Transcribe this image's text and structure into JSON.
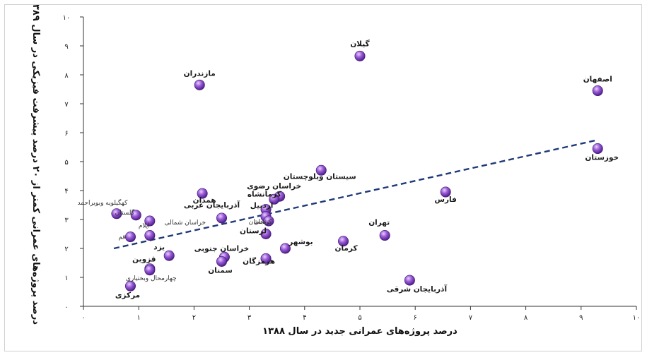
{
  "chart_data": {
    "type": "scatter",
    "title": "",
    "xlabel": "درصد پروژه‌های عمرانی جدید در سال ۱۳۸۸",
    "ylabel": "درصد پروژه‌های عمرانی کمتر از ۲۰ درصد پیشرفت فیزیکی در سال ۱۳۸۹",
    "xlim": [
      0,
      10
    ],
    "ylim": [
      0,
      10
    ],
    "x_ticks": [
      {
        "value": 0,
        "label": "۰"
      },
      {
        "value": 1,
        "label": "۱"
      },
      {
        "value": 2,
        "label": "۲"
      },
      {
        "value": 3,
        "label": "۳"
      },
      {
        "value": 4,
        "label": "۴"
      },
      {
        "value": 5,
        "label": "۵"
      },
      {
        "value": 6,
        "label": "۶"
      },
      {
        "value": 7,
        "label": "۷"
      },
      {
        "value": 8,
        "label": "۸"
      },
      {
        "value": 9,
        "label": "۹"
      },
      {
        "value": 10,
        "label": "۱۰"
      }
    ],
    "y_ticks": [
      {
        "value": 0,
        "label": "۰"
      },
      {
        "value": 1,
        "label": "۱"
      },
      {
        "value": 2,
        "label": "۲"
      },
      {
        "value": 3,
        "label": "۳"
      },
      {
        "value": 4,
        "label": "۴"
      },
      {
        "value": 5,
        "label": "۵"
      },
      {
        "value": 6,
        "label": "۶"
      },
      {
        "value": 7,
        "label": "۷"
      },
      {
        "value": 8,
        "label": "۸"
      },
      {
        "value": 9,
        "label": "۹"
      },
      {
        "value": 10,
        "label": "۱۰"
      }
    ],
    "grid": false,
    "legend": "none",
    "marker_color": "#7f3fbf",
    "trendline": {
      "style": "dashed",
      "color": "#1f3a78",
      "from": [
        0.55,
        2.0
      ],
      "to": [
        9.3,
        5.75
      ]
    },
    "points": [
      {
        "name": "گیلان",
        "x": 5.0,
        "y": 8.65
      },
      {
        "name": "اصفهان",
        "x": 9.3,
        "y": 7.45
      },
      {
        "name": "مازندران",
        "x": 2.1,
        "y": 7.65
      },
      {
        "name": "خوزستان",
        "x": 9.3,
        "y": 5.45
      },
      {
        "name": "سیستان وبلوچستان",
        "x": 4.3,
        "y": 4.7
      },
      {
        "name": "فارس",
        "x": 6.55,
        "y": 3.95
      },
      {
        "name": "خراسان رضوی",
        "x": 3.55,
        "y": 3.8
      },
      {
        "name": "کرمانشاه",
        "x": 3.45,
        "y": 3.7
      },
      {
        "name": "همدان",
        "x": 2.15,
        "y": 3.9
      },
      {
        "name": "آذربایجان غربی",
        "x": 2.5,
        "y": 3.05
      },
      {
        "name": "اردبیل",
        "x": 3.3,
        "y": 3.35
      },
      {
        "name": "کردستان",
        "x": 3.3,
        "y": 3.1
      },
      {
        "name": "زنجان",
        "x": 3.35,
        "y": 2.95
      },
      {
        "name": "لرستان",
        "x": 3.3,
        "y": 2.5
      },
      {
        "name": "تهران",
        "x": 5.45,
        "y": 2.45
      },
      {
        "name": "کرمان",
        "x": 4.7,
        "y": 2.25
      },
      {
        "name": "بوشهر",
        "x": 3.65,
        "y": 2.0
      },
      {
        "name": "خراسان جنوبی",
        "x": 2.55,
        "y": 1.7
      },
      {
        "name": "هرمزگان",
        "x": 3.3,
        "y": 1.65
      },
      {
        "name": "سمنان",
        "x": 2.5,
        "y": 1.55
      },
      {
        "name": "کهگیلویه وبویراحمد",
        "x": 0.6,
        "y": 3.2
      },
      {
        "name": "گلستان",
        "x": 0.95,
        "y": 3.15
      },
      {
        "name": "خراسان شمالی",
        "x": 1.2,
        "y": 2.95
      },
      {
        "name": "ایلام",
        "x": 1.2,
        "y": 2.45
      },
      {
        "name": "قم",
        "x": 0.85,
        "y": 2.4
      },
      {
        "name": "یزد",
        "x": 1.55,
        "y": 1.75
      },
      {
        "name": "قزوین",
        "x": 1.2,
        "y": 1.3
      },
      {
        "name": "چهارمحال وبختیاری",
        "x": 1.2,
        "y": 1.25
      },
      {
        "name": "مرکزی",
        "x": 0.85,
        "y": 0.7
      },
      {
        "name": "آذربایجان شرقی",
        "x": 5.9,
        "y": 0.9
      }
    ]
  }
}
